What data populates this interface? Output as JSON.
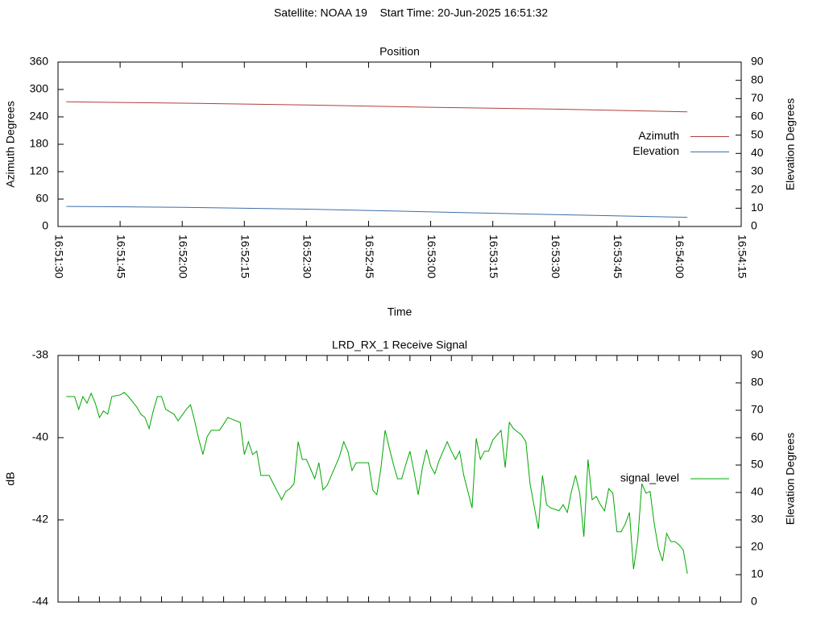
{
  "title": "Satellite: NOAA 19    Start Time: 20-Jun-2025 16:51:32",
  "chart_data": [
    {
      "type": "line",
      "title": "Position",
      "xlabel": "Time",
      "ylabel": "Azimuth Degrees",
      "y2label": "Elevation Degrees",
      "x": [
        "16:51:32",
        "16:52:00",
        "16:52:30",
        "16:53:00",
        "16:53:30",
        "16:54:02"
      ],
      "xlim": [
        "16:51:30",
        "16:54:15"
      ],
      "xticks": [
        "16:51:30",
        "16:51:45",
        "16:52:00",
        "16:52:15",
        "16:52:30",
        "16:52:45",
        "16:53:00",
        "16:53:15",
        "16:53:30",
        "16:53:45",
        "16:54:00",
        "16:54:15"
      ],
      "xtick_labels": true,
      "ylim": [
        0,
        360
      ],
      "yticks": [
        0,
        60,
        120,
        180,
        240,
        300,
        360
      ],
      "y2lim": [
        0,
        90
      ],
      "y2ticks": [
        0,
        10,
        20,
        30,
        40,
        50,
        60,
        70,
        80,
        90
      ],
      "legend": "right",
      "series": [
        {
          "name": "Azimuth",
          "color": "#b0403c",
          "values": [
            273,
            270,
            266,
            261,
            257,
            251
          ]
        },
        {
          "name": "Elevation",
          "color": "#3c6ea8",
          "axis": "y2",
          "values": [
            11,
            10.5,
            9.5,
            8,
            6.5,
            5
          ]
        }
      ]
    },
    {
      "type": "line",
      "title": "LRD_RX_1 Receive Signal",
      "ylabel": "dB",
      "y2label": "Elevation Degrees",
      "x": [
        "16:51:32",
        "16:51:34",
        "16:51:35",
        "16:51:36",
        "16:51:37",
        "16:51:38",
        "16:51:39",
        "16:51:40",
        "16:51:41",
        "16:51:42",
        "16:51:43",
        "16:51:45",
        "16:51:46",
        "16:51:47",
        "16:51:49",
        "16:51:50",
        "16:51:51",
        "16:51:52",
        "16:51:53",
        "16:51:54",
        "16:51:55",
        "16:51:56",
        "16:51:58",
        "16:51:59",
        "16:52:01",
        "16:52:02",
        "16:52:03",
        "16:52:04",
        "16:52:05",
        "16:52:06",
        "16:52:07",
        "16:52:08",
        "16:52:09",
        "16:52:10",
        "16:52:11",
        "16:52:12",
        "16:52:14",
        "16:52:15",
        "16:52:16",
        "16:52:17",
        "16:52:18",
        "16:52:19",
        "16:52:20",
        "16:52:21",
        "16:52:22",
        "16:52:23",
        "16:52:24",
        "16:52:25",
        "16:52:26",
        "16:52:27",
        "16:52:28",
        "16:52:29",
        "16:52:30",
        "16:52:31",
        "16:52:32",
        "16:52:33",
        "16:52:34",
        "16:52:35",
        "16:52:37",
        "16:52:38",
        "16:52:39",
        "16:52:40",
        "16:52:41",
        "16:52:42",
        "16:52:43",
        "16:52:44",
        "16:52:45",
        "16:52:46",
        "16:52:47",
        "16:52:48",
        "16:52:49",
        "16:52:50",
        "16:52:51",
        "16:52:52",
        "16:52:53",
        "16:52:54",
        "16:52:55",
        "16:52:56",
        "16:52:57",
        "16:52:58",
        "16:52:59",
        "16:53:00",
        "16:53:01",
        "16:53:02",
        "16:53:03",
        "16:53:04",
        "16:53:05",
        "16:53:06",
        "16:53:07",
        "16:53:08",
        "16:53:10",
        "16:53:11",
        "16:53:12",
        "16:53:13",
        "16:53:14",
        "16:53:15",
        "16:53:17",
        "16:53:18",
        "16:53:19",
        "16:53:20",
        "16:53:22",
        "16:53:23",
        "16:53:24",
        "16:53:26",
        "16:53:27",
        "16:53:28",
        "16:53:29",
        "16:53:31",
        "16:53:32",
        "16:53:33",
        "16:53:34",
        "16:53:35",
        "16:53:36",
        "16:53:37",
        "16:53:38",
        "16:53:39",
        "16:53:40",
        "16:53:41",
        "16:53:42",
        "16:53:43",
        "16:53:44",
        "16:53:45",
        "16:53:46",
        "16:53:47",
        "16:53:48",
        "16:53:49",
        "16:53:50",
        "16:53:51",
        "16:53:52",
        "16:53:53",
        "16:53:54",
        "16:53:55",
        "16:53:56",
        "16:53:57",
        "16:53:58",
        "16:53:59",
        "16:54:00",
        "16:54:01",
        "16:54:02"
      ],
      "xlim": [
        "16:51:30",
        "16:54:15"
      ],
      "xticks": [
        "16:51:30",
        "16:51:35",
        "16:51:40",
        "16:51:45",
        "16:51:50",
        "16:51:55",
        "16:52:00",
        "16:52:05",
        "16:52:10",
        "16:52:15",
        "16:52:20",
        "16:52:25",
        "16:52:30",
        "16:52:35",
        "16:52:40",
        "16:52:45",
        "16:52:50",
        "16:52:55",
        "16:53:00",
        "16:53:05",
        "16:53:10",
        "16:53:15",
        "16:53:20",
        "16:53:25",
        "16:53:30",
        "16:53:35",
        "16:53:40",
        "16:53:45",
        "16:53:50",
        "16:53:55",
        "16:54:00",
        "16:54:05",
        "16:54:10",
        "16:54:15"
      ],
      "xtick_labels": false,
      "ylim": [
        -44,
        -38
      ],
      "yticks": [
        -44,
        -42,
        -40,
        -38
      ],
      "y2lim": [
        0,
        90
      ],
      "y2ticks": [
        0,
        10,
        20,
        30,
        40,
        50,
        60,
        70,
        80,
        90
      ],
      "legend": "right",
      "series": [
        {
          "name": "signal_level",
          "color": "#00a800",
          "values": [
            -39.0,
            -39.0,
            -39.31,
            -39.0,
            -39.16,
            -38.92,
            -39.16,
            -39.51,
            -39.35,
            -39.43,
            -39.0,
            -38.96,
            -38.9,
            -39.0,
            -39.25,
            -39.43,
            -39.51,
            -39.78,
            -39.35,
            -39.0,
            -39.0,
            -39.31,
            -39.43,
            -39.59,
            -39.31,
            -39.2,
            -39.59,
            -40.04,
            -40.41,
            -39.98,
            -39.82,
            -39.82,
            -39.82,
            -39.67,
            -39.51,
            -39.55,
            -39.63,
            -40.41,
            -40.1,
            -40.41,
            -40.33,
            -40.92,
            -40.92,
            -40.92,
            -41.12,
            -41.31,
            -41.51,
            -41.31,
            -41.24,
            -41.12,
            -40.1,
            -40.53,
            -40.53,
            -40.76,
            -41.0,
            -40.61,
            -41.27,
            -41.16,
            -40.69,
            -40.45,
            -40.1,
            -40.33,
            -40.8,
            -40.61,
            -40.61,
            -40.61,
            -40.61,
            -41.27,
            -41.39,
            -40.73,
            -39.82,
            -40.25,
            -40.65,
            -41.0,
            -41.0,
            -40.65,
            -40.33,
            -40.84,
            -41.39,
            -40.73,
            -40.29,
            -40.69,
            -40.88,
            -40.57,
            -40.33,
            -40.1,
            -40.33,
            -40.53,
            -40.33,
            -40.92,
            -41.71,
            -40.02,
            -40.53,
            -40.33,
            -40.33,
            -40.06,
            -39.82,
            -40.73,
            -39.63,
            -39.78,
            -39.94,
            -40.1,
            -41.12,
            -42.22,
            -40.92,
            -41.63,
            -41.71,
            -41.78,
            -41.63,
            -41.82,
            -41.31,
            -40.92,
            -41.35,
            -42.41,
            -40.53,
            -41.51,
            -41.43,
            -41.63,
            -41.78,
            -41.24,
            -41.35,
            -42.29,
            -42.29,
            -42.1,
            -41.82,
            -43.2,
            -42.49,
            -41.12,
            -41.35,
            -41.31,
            -42.1,
            -42.69,
            -43.0,
            -42.33,
            -42.53,
            -42.53,
            -42.61,
            -42.73,
            -43.31
          ]
        }
      ]
    }
  ]
}
